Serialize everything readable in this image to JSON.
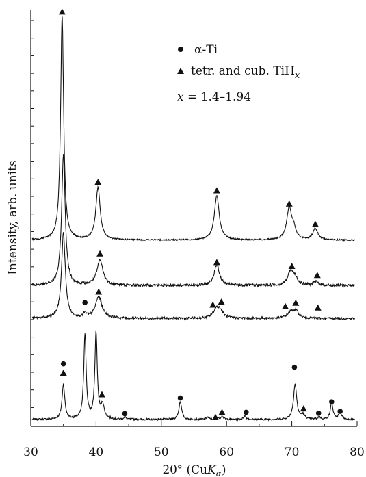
{
  "chart_data": {
    "type": "line",
    "xlabel_main": "2θ° (Cu",
    "xlabel_italic": "K",
    "xlabel_sub": "α",
    "xlabel_close": ")",
    "ylabel": "Intensity, arb. units",
    "xlim": [
      30,
      80
    ],
    "xticks": [
      "30",
      "40",
      "50",
      "60",
      "70",
      "80"
    ],
    "legend": [
      {
        "marker": "circle",
        "text": "α-Ti"
      },
      {
        "marker": "triangle",
        "text_main": "tetr. and cub. TiH",
        "text_sub": "x"
      },
      {
        "text_italic": "x",
        "text_rest": " = 1.4–1.94"
      }
    ],
    "series": [
      {
        "baseline": 0.03,
        "noise": 0.004,
        "peaks": [
          [
            35.0,
            0.155,
            0.25
          ],
          [
            38.3,
            0.375,
            0.22
          ],
          [
            40.0,
            0.38,
            0.22
          ],
          [
            41.0,
            0.06,
            0.3
          ],
          [
            44.4,
            0.01,
            0.2
          ],
          [
            52.9,
            0.08,
            0.25
          ],
          [
            57.1,
            0.01,
            0.2
          ],
          [
            58.5,
            0.01,
            0.2
          ],
          [
            59.3,
            0.015,
            0.25
          ],
          [
            62.8,
            0.015,
            0.25
          ],
          [
            70.5,
            0.155,
            0.3
          ],
          [
            71.7,
            0.02,
            0.3
          ],
          [
            74.2,
            0.01,
            0.25
          ],
          [
            76.1,
            0.07,
            0.25
          ],
          [
            77.4,
            0.035,
            0.25
          ]
        ],
        "markers": [
          {
            "x": 35.0,
            "type": "circle",
            "y": 0.275
          },
          {
            "x": 35.0,
            "type": "triangle",
            "y": 0.235
          },
          {
            "x": 40.9,
            "type": "triangle",
            "y": 0.14
          },
          {
            "x": 44.4,
            "type": "circle",
            "y": 0.056
          },
          {
            "x": 52.9,
            "type": "circle",
            "y": 0.125
          },
          {
            "x": 58.3,
            "type": "triangle",
            "y": 0.04
          },
          {
            "x": 59.3,
            "type": "triangle",
            "y": 0.062
          },
          {
            "x": 63.0,
            "type": "circle",
            "y": 0.062
          },
          {
            "x": 70.4,
            "type": "circle",
            "y": 0.26
          },
          {
            "x": 71.8,
            "type": "triangle",
            "y": 0.078
          },
          {
            "x": 74.1,
            "type": "circle",
            "y": 0.058
          },
          {
            "x": 76.1,
            "type": "circle",
            "y": 0.108
          },
          {
            "x": 77.4,
            "type": "circle",
            "y": 0.066
          }
        ]
      },
      {
        "baseline": 0.475,
        "noise": 0.005,
        "peaks": [
          [
            35.0,
            0.375,
            0.35
          ],
          [
            38.3,
            0.018,
            0.3
          ],
          [
            40.4,
            0.095,
            0.6
          ],
          [
            58.5,
            0.045,
            0.6
          ],
          [
            59.1,
            0.02,
            0.5
          ],
          [
            69.8,
            0.025,
            0.6
          ],
          [
            70.6,
            0.03,
            0.5
          ]
        ],
        "markers": [
          {
            "x": 38.3,
            "type": "circle",
            "y": 0.545
          },
          {
            "x": 40.4,
            "type": "triangle",
            "y": 0.592
          },
          {
            "x": 57.9,
            "type": "triangle",
            "y": 0.535
          },
          {
            "x": 59.2,
            "type": "triangle",
            "y": 0.548
          },
          {
            "x": 69.0,
            "type": "triangle",
            "y": 0.528
          },
          {
            "x": 70.6,
            "type": "triangle",
            "y": 0.543
          },
          {
            "x": 74.0,
            "type": "triangle",
            "y": 0.522
          }
        ]
      },
      {
        "baseline": 0.62,
        "noise": 0.006,
        "peaks": [
          [
            35.0,
            0.575,
            0.33
          ],
          [
            40.6,
            0.11,
            0.55
          ],
          [
            58.5,
            0.09,
            0.5
          ],
          [
            69.8,
            0.06,
            0.5
          ],
          [
            70.5,
            0.03,
            0.5
          ],
          [
            73.7,
            0.015,
            0.5
          ]
        ],
        "markers": [
          {
            "x": 40.6,
            "type": "triangle",
            "y": 0.76
          },
          {
            "x": 58.5,
            "type": "triangle",
            "y": 0.722
          },
          {
            "x": 70.0,
            "type": "triangle",
            "y": 0.705
          },
          {
            "x": 73.9,
            "type": "triangle",
            "y": 0.665
          }
        ]
      },
      {
        "baseline": 0.82,
        "noise": 0.003,
        "peaks": [
          [
            34.8,
            0.985,
            0.28
          ],
          [
            40.3,
            0.23,
            0.4
          ],
          [
            58.5,
            0.195,
            0.45
          ],
          [
            69.6,
            0.14,
            0.45
          ],
          [
            70.3,
            0.04,
            0.4
          ],
          [
            73.6,
            0.05,
            0.45
          ]
        ],
        "markers": [
          {
            "x": 34.8,
            "type": "triangle",
            "y": 1.825
          },
          {
            "x": 40.3,
            "type": "triangle",
            "y": 1.075
          },
          {
            "x": 58.5,
            "type": "triangle",
            "y": 1.038
          },
          {
            "x": 69.6,
            "type": "triangle",
            "y": 0.98
          },
          {
            "x": 73.6,
            "type": "triangle",
            "y": 0.89
          }
        ]
      }
    ],
    "ylim": [
      0,
      1.835
    ],
    "colors": {
      "line": "#111111",
      "marker": "#111111"
    }
  }
}
